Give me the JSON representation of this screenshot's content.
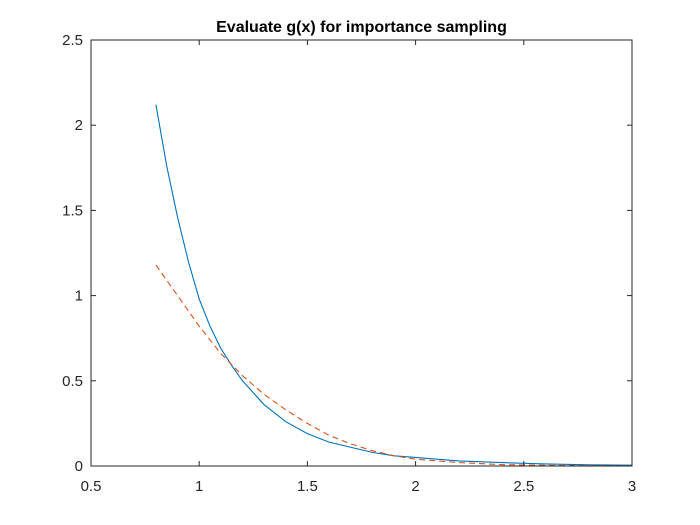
{
  "chart_data": {
    "type": "line",
    "title": "Evaluate g(x) for importance sampling",
    "xlabel": "",
    "ylabel": "",
    "xlim": [
      0.5,
      3
    ],
    "ylim": [
      0,
      2.5
    ],
    "xticks": [
      0.5,
      1,
      1.5,
      2,
      2.5,
      3
    ],
    "yticks": [
      0,
      0.5,
      1,
      1.5,
      2,
      2.5
    ],
    "xtick_labels": [
      "0.5",
      "1",
      "1.5",
      "2",
      "2.5",
      "3"
    ],
    "ytick_labels": [
      "0",
      "0.5",
      "1",
      "1.5",
      "2",
      "2.5"
    ],
    "grid": false,
    "box": true,
    "series": [
      {
        "style": "solid",
        "color": "#0072BD",
        "x": [
          0.8,
          0.85,
          0.9,
          0.95,
          1.0,
          1.05,
          1.1,
          1.15,
          1.2,
          1.25,
          1.3,
          1.4,
          1.5,
          1.6,
          1.7,
          1.8,
          1.9,
          2.0,
          2.2,
          2.4,
          2.6,
          2.8,
          3.0
        ],
        "y": [
          2.12,
          1.76,
          1.46,
          1.2,
          0.98,
          0.82,
          0.69,
          0.59,
          0.5,
          0.43,
          0.36,
          0.26,
          0.19,
          0.14,
          0.11,
          0.08,
          0.06,
          0.05,
          0.03,
          0.02,
          0.012,
          0.007,
          0.005
        ]
      },
      {
        "style": "dashed",
        "color": "#D95319",
        "x": [
          0.8,
          0.9,
          1.0,
          1.1,
          1.2,
          1.3,
          1.4,
          1.5,
          1.6,
          1.7,
          1.8,
          1.9,
          2.0,
          2.2,
          2.4,
          2.6,
          2.8,
          3.0
        ],
        "y": [
          1.18,
          1.0,
          0.82,
          0.66,
          0.53,
          0.42,
          0.33,
          0.25,
          0.18,
          0.13,
          0.09,
          0.06,
          0.04,
          0.02,
          0.008,
          0.004,
          0.002,
          0.001
        ]
      }
    ]
  }
}
